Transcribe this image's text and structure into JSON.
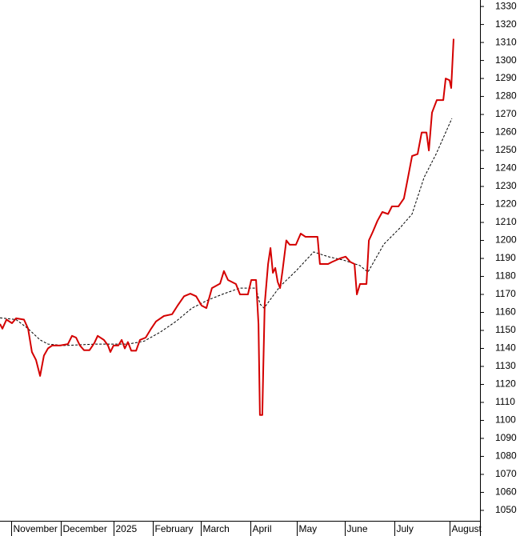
{
  "chart_data": {
    "type": "line",
    "xlim": [
      0,
      200
    ],
    "ylim": [
      1044.2,
      1333.6
    ],
    "xticks": [
      {
        "value": 4.7,
        "label": "November"
      },
      {
        "value": 25.3,
        "label": "December"
      },
      {
        "value": 47.3,
        "label": "2025"
      },
      {
        "value": 63.7,
        "label": "February"
      },
      {
        "value": 83.7,
        "label": "March"
      },
      {
        "value": 104.3,
        "label": "April"
      },
      {
        "value": 123.7,
        "label": "May"
      },
      {
        "value": 143.7,
        "label": "June"
      },
      {
        "value": 164.3,
        "label": "July"
      },
      {
        "value": 187.3,
        "label": "August"
      }
    ],
    "yticks": [
      1050,
      1060,
      1070,
      1080,
      1090,
      1100,
      1110,
      1120,
      1130,
      1140,
      1150,
      1160,
      1170,
      1180,
      1190,
      1200,
      1210,
      1220,
      1230,
      1240,
      1250,
      1260,
      1270,
      1280,
      1290,
      1300,
      1310,
      1320,
      1330
    ],
    "series": [
      {
        "color": "#d40000",
        "dashed": false,
        "x": [
          0,
          1,
          2.7,
          5,
          6.7,
          10,
          11.7,
          13.3,
          15,
          16.7,
          18.3,
          20,
          21.7,
          25,
          28.3,
          30,
          31.7,
          33.3,
          35,
          37.3,
          39.3,
          40.7,
          43.3,
          45,
          46,
          47.3,
          49.3,
          50.7,
          52,
          53.3,
          54.7,
          56.7,
          58.3,
          60.7,
          62.7,
          65,
          68.3,
          71.7,
          74,
          76.7,
          79.3,
          81.7,
          84,
          86,
          88.3,
          91.7,
          93.3,
          95,
          98.3,
          100,
          103.3,
          104.7,
          106.7,
          107.7,
          108.3,
          109.3,
          109.7,
          110.3,
          111.7,
          112.7,
          113.7,
          114.7,
          115.7,
          116.7,
          117.7,
          119.3,
          120.7,
          123.3,
          125.3,
          127.3,
          132.3,
          133.3,
          136.7,
          138.3,
          141.7,
          144,
          146,
          147.7,
          148.7,
          150,
          152.7,
          153.7,
          155.3,
          157.3,
          159.3,
          161.7,
          163.3,
          166,
          168.3,
          170,
          171.7,
          174,
          175.7,
          177.7,
          178.7,
          180,
          182,
          184.7,
          185.7,
          187.3,
          188,
          189
        ],
        "values": [
          1153.6,
          1151,
          1156,
          1154,
          1156.7,
          1156,
          1151,
          1138,
          1133.6,
          1124.7,
          1136,
          1140,
          1141.6,
          1141.6,
          1142.4,
          1147,
          1146,
          1141.6,
          1139,
          1139,
          1143,
          1147,
          1144.7,
          1141.6,
          1138,
          1141.6,
          1141.6,
          1144.7,
          1140,
          1143.5,
          1138.7,
          1138.7,
          1144.7,
          1146,
          1150.4,
          1155,
          1158,
          1159,
          1163.8,
          1169,
          1170.4,
          1169,
          1163.8,
          1162.4,
          1173.5,
          1176,
          1183,
          1178,
          1175.8,
          1170,
          1170,
          1178,
          1178,
          1153.6,
          1103,
          1103,
          1129,
          1164.7,
          1186.9,
          1195.8,
          1182,
          1184.7,
          1177,
          1173.5,
          1183,
          1200,
          1197.6,
          1197.6,
          1203.8,
          1202,
          1202,
          1186.9,
          1186.9,
          1188,
          1190,
          1191,
          1188,
          1186.9,
          1170,
          1175.8,
          1175.8,
          1200,
          1204.7,
          1211,
          1215.8,
          1214.7,
          1218.9,
          1218.9,
          1223.3,
          1235,
          1246.9,
          1248,
          1260,
          1260,
          1250,
          1271,
          1278,
          1278,
          1290,
          1289,
          1284.7,
          1312
        ]
      },
      {
        "color": "#000000",
        "dashed": true,
        "x": [
          0,
          6.7,
          11.7,
          16.7,
          20,
          26.7,
          40,
          53.3,
          60,
          66.7,
          73.3,
          80,
          86.7,
          93.3,
          100,
          106.7,
          108.3,
          110,
          116.7,
          123.3,
          130.7,
          136.7,
          143.3,
          150,
          153.3,
          160,
          166.7,
          171.7,
          176.7,
          181.7,
          188.3
        ],
        "values": [
          1157,
          1156,
          1151,
          1144.7,
          1142.4,
          1141.6,
          1142.4,
          1142.4,
          1144,
          1149,
          1155,
          1162.4,
          1166.9,
          1170.4,
          1173.5,
          1173.5,
          1164.7,
          1162.4,
          1174.5,
          1183,
          1193.6,
          1191,
          1189,
          1186,
          1182.4,
          1198,
          1207,
          1214.7,
          1235,
          1248,
          1267.8
        ]
      }
    ]
  }
}
